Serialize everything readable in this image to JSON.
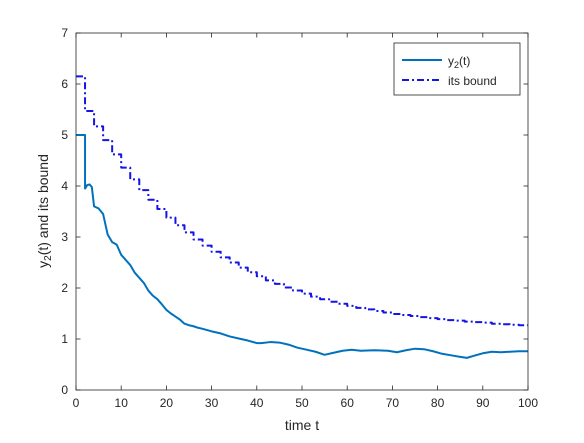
{
  "chart_data": {
    "type": "line",
    "title": "",
    "xlabel": "time t",
    "ylabel_base": "y",
    "ylabel_sub": "2",
    "ylabel_rest": "(t) and its bound",
    "xlim": [
      0,
      100
    ],
    "ylim": [
      0,
      7
    ],
    "xticks": [
      0,
      10,
      20,
      30,
      40,
      50,
      60,
      70,
      80,
      90,
      100
    ],
    "yticks": [
      0,
      1,
      2,
      3,
      4,
      5,
      6,
      7
    ],
    "grid": false,
    "legend_position": "top-right",
    "series": [
      {
        "name_base": "y",
        "name_sub": "2",
        "name_rest": "(t)",
        "color": "#0072BD",
        "style": "solid",
        "points": [
          [
            0,
            5.0
          ],
          [
            2,
            5.0
          ],
          [
            2,
            3.95
          ],
          [
            2.5,
            4.02
          ],
          [
            3,
            4.03
          ],
          [
            3.5,
            3.98
          ],
          [
            4,
            3.6
          ],
          [
            5,
            3.56
          ],
          [
            6,
            3.45
          ],
          [
            7,
            3.05
          ],
          [
            8,
            2.9
          ],
          [
            9,
            2.85
          ],
          [
            10,
            2.65
          ],
          [
            11,
            2.55
          ],
          [
            12,
            2.45
          ],
          [
            13,
            2.3
          ],
          [
            14,
            2.2
          ],
          [
            15,
            2.1
          ],
          [
            16,
            1.95
          ],
          [
            17,
            1.85
          ],
          [
            18,
            1.78
          ],
          [
            19,
            1.68
          ],
          [
            20,
            1.57
          ],
          [
            21,
            1.5
          ],
          [
            22,
            1.44
          ],
          [
            23,
            1.38
          ],
          [
            24,
            1.3
          ],
          [
            25,
            1.27
          ],
          [
            26,
            1.25
          ],
          [
            27,
            1.22
          ],
          [
            28,
            1.2
          ],
          [
            30,
            1.15
          ],
          [
            32,
            1.11
          ],
          [
            34,
            1.05
          ],
          [
            36,
            1.01
          ],
          [
            38,
            0.97
          ],
          [
            40,
            0.92
          ],
          [
            41,
            0.92
          ],
          [
            43,
            0.94
          ],
          [
            45,
            0.93
          ],
          [
            47,
            0.89
          ],
          [
            49,
            0.83
          ],
          [
            51,
            0.79
          ],
          [
            53,
            0.75
          ],
          [
            55,
            0.69
          ],
          [
            57,
            0.73
          ],
          [
            59,
            0.77
          ],
          [
            61,
            0.79
          ],
          [
            63,
            0.77
          ],
          [
            66,
            0.78
          ],
          [
            69,
            0.77
          ],
          [
            71,
            0.74
          ],
          [
            73,
            0.78
          ],
          [
            75,
            0.81
          ],
          [
            77,
            0.8
          ],
          [
            79,
            0.76
          ],
          [
            81,
            0.71
          ],
          [
            83,
            0.68
          ],
          [
            85,
            0.65
          ],
          [
            86.5,
            0.63
          ],
          [
            88,
            0.67
          ],
          [
            90,
            0.72
          ],
          [
            92,
            0.75
          ],
          [
            94,
            0.74
          ],
          [
            96,
            0.75
          ],
          [
            98,
            0.76
          ],
          [
            100,
            0.76
          ]
        ]
      },
      {
        "name": "its bound",
        "color": "#1414E6",
        "style": "dashdot",
        "points": [
          [
            0,
            6.15
          ],
          [
            2,
            6.15
          ],
          [
            2,
            5.47
          ],
          [
            4,
            5.47
          ],
          [
            4,
            5.17
          ],
          [
            6,
            5.17
          ],
          [
            6,
            4.9
          ],
          [
            8,
            4.9
          ],
          [
            8,
            4.62
          ],
          [
            10,
            4.62
          ],
          [
            10,
            4.36
          ],
          [
            12,
            4.36
          ],
          [
            12,
            4.13
          ],
          [
            14,
            4.13
          ],
          [
            14,
            3.92
          ],
          [
            16,
            3.92
          ],
          [
            16,
            3.73
          ],
          [
            18,
            3.73
          ],
          [
            18,
            3.55
          ],
          [
            20,
            3.55
          ],
          [
            20,
            3.38
          ],
          [
            22,
            3.38
          ],
          [
            22,
            3.23
          ],
          [
            24,
            3.23
          ],
          [
            24,
            3.09
          ],
          [
            26,
            3.09
          ],
          [
            26,
            2.95
          ],
          [
            28,
            2.95
          ],
          [
            28,
            2.83
          ],
          [
            30,
            2.83
          ],
          [
            30,
            2.71
          ],
          [
            32,
            2.71
          ],
          [
            32,
            2.6
          ],
          [
            34,
            2.6
          ],
          [
            34,
            2.5
          ],
          [
            36,
            2.5
          ],
          [
            36,
            2.4
          ],
          [
            38,
            2.4
          ],
          [
            38,
            2.31
          ],
          [
            40,
            2.31
          ],
          [
            40,
            2.23
          ],
          [
            42,
            2.23
          ],
          [
            42,
            2.15
          ],
          [
            44,
            2.15
          ],
          [
            44,
            2.08
          ],
          [
            46,
            2.08
          ],
          [
            46,
            2.01
          ],
          [
            48,
            2.01
          ],
          [
            48,
            1.95
          ],
          [
            50,
            1.95
          ],
          [
            50,
            1.89
          ],
          [
            52,
            1.89
          ],
          [
            52,
            1.83
          ],
          [
            54,
            1.83
          ],
          [
            54,
            1.78
          ],
          [
            56,
            1.78
          ],
          [
            56,
            1.73
          ],
          [
            58,
            1.73
          ],
          [
            58,
            1.69
          ],
          [
            60,
            1.69
          ],
          [
            60,
            1.65
          ],
          [
            62,
            1.65
          ],
          [
            62,
            1.61
          ],
          [
            64,
            1.61
          ],
          [
            64,
            1.58
          ],
          [
            66,
            1.58
          ],
          [
            66,
            1.55
          ],
          [
            68,
            1.55
          ],
          [
            68,
            1.52
          ],
          [
            70,
            1.52
          ],
          [
            70,
            1.49
          ],
          [
            72,
            1.49
          ],
          [
            72,
            1.47
          ],
          [
            74,
            1.47
          ],
          [
            74,
            1.45
          ],
          [
            76,
            1.45
          ],
          [
            76,
            1.43
          ],
          [
            78,
            1.43
          ],
          [
            78,
            1.41
          ],
          [
            80,
            1.41
          ],
          [
            80,
            1.39
          ],
          [
            82,
            1.39
          ],
          [
            82,
            1.37
          ],
          [
            84,
            1.37
          ],
          [
            84,
            1.36
          ],
          [
            86,
            1.36
          ],
          [
            86,
            1.34
          ],
          [
            88,
            1.34
          ],
          [
            88,
            1.33
          ],
          [
            90,
            1.33
          ],
          [
            90,
            1.32
          ],
          [
            92,
            1.32
          ],
          [
            92,
            1.3
          ],
          [
            94,
            1.3
          ],
          [
            94,
            1.29
          ],
          [
            96,
            1.29
          ],
          [
            96,
            1.28
          ],
          [
            98,
            1.28
          ],
          [
            98,
            1.27
          ],
          [
            100,
            1.27
          ]
        ]
      }
    ]
  }
}
